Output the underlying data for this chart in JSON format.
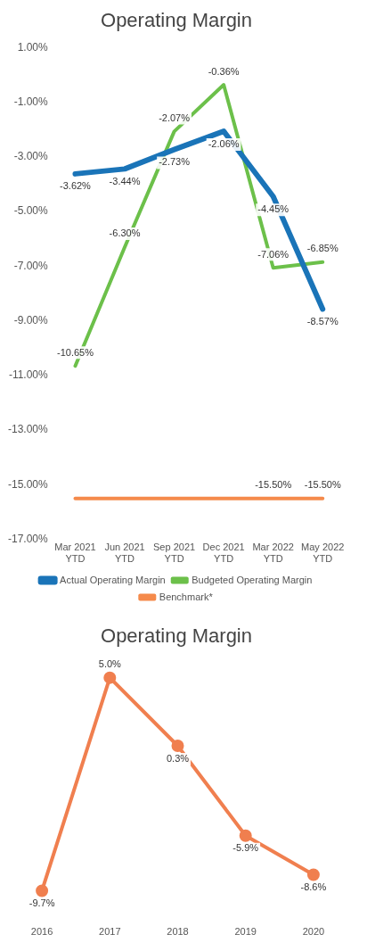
{
  "chart_data": [
    {
      "type": "line",
      "title": "Operating Margin",
      "categories": [
        "Mar 2021 YTD",
        "Jun 2021 YTD",
        "Sep 2021 YTD",
        "Dec 2021 YTD",
        "Mar 2022 YTD",
        "May 2022 YTD"
      ],
      "series": [
        {
          "name": "Actual Operating Margin",
          "color": "#1a74b8",
          "values": [
            -3.62,
            -3.44,
            -2.73,
            -2.06,
            -4.45,
            -8.57
          ],
          "value_labels": [
            "-3.62%",
            "-3.44%",
            "-2.73%",
            "-2.06%",
            "-4.45%",
            "-8.57%"
          ]
        },
        {
          "name": "Budgeted Operating Margin",
          "color": "#6cc04a",
          "values": [
            -10.65,
            -6.3,
            -2.07,
            -0.36,
            -7.06,
            -6.85
          ],
          "value_labels": [
            "-10.65%",
            "-6.30%",
            "-2.07%",
            "-0.36%",
            "-7.06%",
            "-6.85%"
          ]
        },
        {
          "name": "Benchmark*",
          "color": "#f58a4b",
          "values": [
            -15.5,
            -15.5,
            -15.5,
            -15.5,
            -15.5,
            -15.5
          ],
          "value_labels": [
            null,
            null,
            null,
            null,
            "-15.50%",
            "-15.50%"
          ]
        }
      ],
      "ylim": [
        -17,
        1
      ],
      "yticks": [
        {
          "value": 1,
          "label": "1.00%"
        },
        {
          "value": -1,
          "label": "-1.00%"
        },
        {
          "value": -3,
          "label": "-3.00%"
        },
        {
          "value": -5,
          "label": "-5.00%"
        },
        {
          "value": -7,
          "label": "-7.00%"
        },
        {
          "value": -9,
          "label": "-9.00%"
        },
        {
          "value": -11,
          "label": "-11.00%"
        },
        {
          "value": -13,
          "label": "-13.00%"
        },
        {
          "value": -15,
          "label": "-15.00%"
        },
        {
          "value": -17,
          "label": "-17.00%"
        }
      ],
      "legend": "bottom",
      "marker": "none",
      "grid": false
    },
    {
      "type": "line",
      "title": "Operating Margin",
      "categories": [
        "2016",
        "2017",
        "2018",
        "2019",
        "2020"
      ],
      "series": [
        {
          "color": "#f07f4f",
          "values": [
            -9.7,
            5.0,
            0.3,
            -5.9,
            -8.6
          ],
          "value_labels": [
            "-9.7%",
            "5.0%",
            "0.3%",
            "-5.9%",
            "-8.6%"
          ]
        }
      ],
      "tick_labels": "x",
      "marker": "circle",
      "grid": false
    }
  ]
}
